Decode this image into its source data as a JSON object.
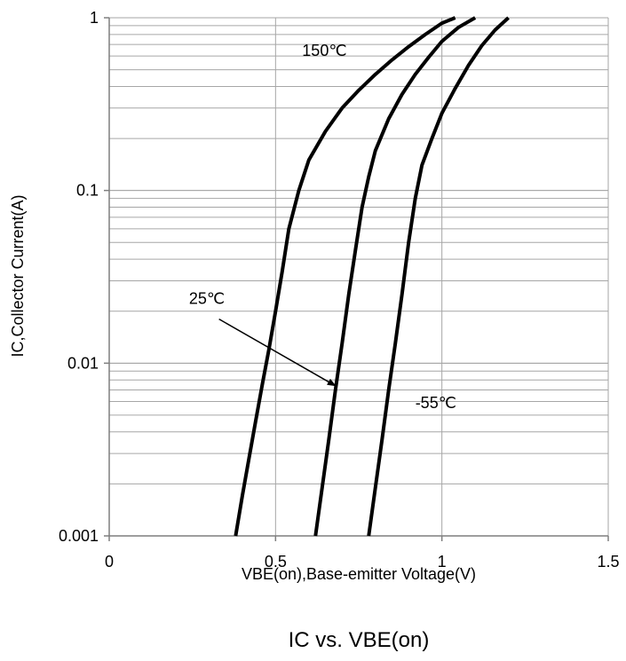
{
  "chart_data": {
    "type": "line",
    "title": "IC vs. VBE(on)",
    "xlabel": "VBE(on),Base-emitter Voltage(V)",
    "ylabel": "IC,Collector  Current(A)",
    "xlim": [
      0,
      1.5
    ],
    "ylim": [
      0.001,
      1
    ],
    "yscale": "log",
    "grid": true,
    "x_ticks": [
      "0",
      "0.5",
      "1",
      "1.5"
    ],
    "x_tick_values": [
      0,
      0.5,
      1,
      1.5
    ],
    "y_ticks": [
      "0.001",
      "0.01",
      "0.1",
      "1"
    ],
    "y_tick_values": [
      0.001,
      0.01,
      0.1,
      1
    ],
    "line_color": "#000000",
    "grid_color": "#a6a6a6",
    "series": [
      {
        "name": "150℃",
        "points": [
          [
            0.38,
            0.001
          ],
          [
            0.4,
            0.0017
          ],
          [
            0.42,
            0.0028
          ],
          [
            0.44,
            0.0046
          ],
          [
            0.46,
            0.0075
          ],
          [
            0.48,
            0.012
          ],
          [
            0.5,
            0.02
          ],
          [
            0.52,
            0.034
          ],
          [
            0.54,
            0.06
          ],
          [
            0.57,
            0.1
          ],
          [
            0.6,
            0.15
          ],
          [
            0.65,
            0.22
          ],
          [
            0.7,
            0.3
          ],
          [
            0.75,
            0.38
          ],
          [
            0.8,
            0.47
          ],
          [
            0.85,
            0.57
          ],
          [
            0.9,
            0.68
          ],
          [
            0.95,
            0.8
          ],
          [
            1.0,
            0.93
          ],
          [
            1.04,
            1.0
          ]
        ]
      },
      {
        "name": "25℃",
        "points": [
          [
            0.62,
            0.001
          ],
          [
            0.64,
            0.0019
          ],
          [
            0.66,
            0.0036
          ],
          [
            0.68,
            0.007
          ],
          [
            0.7,
            0.013
          ],
          [
            0.72,
            0.025
          ],
          [
            0.74,
            0.045
          ],
          [
            0.76,
            0.08
          ],
          [
            0.78,
            0.12
          ],
          [
            0.8,
            0.17
          ],
          [
            0.84,
            0.26
          ],
          [
            0.88,
            0.36
          ],
          [
            0.92,
            0.47
          ],
          [
            0.96,
            0.59
          ],
          [
            1.0,
            0.73
          ],
          [
            1.05,
            0.88
          ],
          [
            1.1,
            1.0
          ]
        ]
      },
      {
        "name": "-55℃",
        "points": [
          [
            0.78,
            0.001
          ],
          [
            0.8,
            0.0019
          ],
          [
            0.82,
            0.0036
          ],
          [
            0.84,
            0.007
          ],
          [
            0.86,
            0.013
          ],
          [
            0.88,
            0.025
          ],
          [
            0.9,
            0.05
          ],
          [
            0.92,
            0.09
          ],
          [
            0.94,
            0.14
          ],
          [
            0.97,
            0.2
          ],
          [
            1.0,
            0.28
          ],
          [
            1.04,
            0.39
          ],
          [
            1.08,
            0.53
          ],
          [
            1.12,
            0.69
          ],
          [
            1.16,
            0.85
          ],
          [
            1.2,
            1.0
          ]
        ]
      }
    ],
    "annotations": [
      {
        "text": "150℃",
        "series": "150℃",
        "x": 0.58,
        "y": 0.6
      },
      {
        "text": "25℃",
        "series": "25℃",
        "x": 0.24,
        "y": 0.022
      },
      {
        "text": "-55℃",
        "series": "-55℃",
        "x": 0.92,
        "y": 0.0055
      }
    ],
    "arrow": {
      "from": [
        0.33,
        0.018
      ],
      "to": [
        0.68,
        0.0074
      ],
      "label": "25℃"
    }
  }
}
